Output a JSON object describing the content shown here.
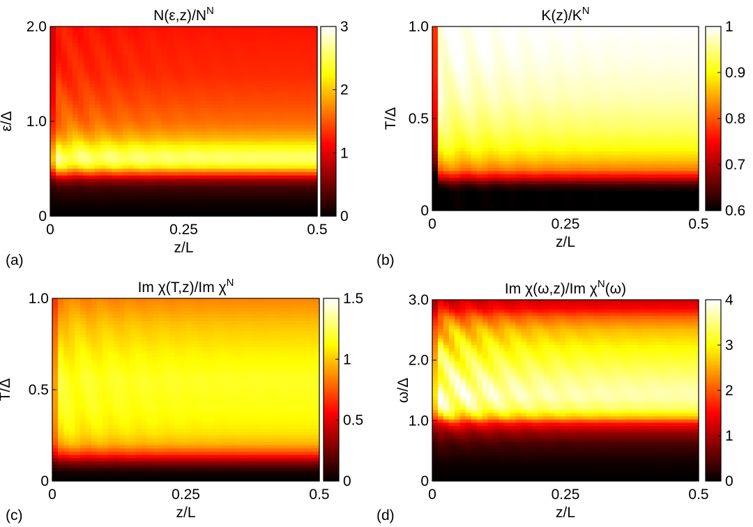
{
  "colormap": "hot",
  "chart_data": [
    {
      "type": "heatmap",
      "panel_label": "(a)",
      "title": "N(ε,z)/N",
      "title_sup": "N",
      "xlabel": "z/L",
      "ylabel": "ε/Δ",
      "xlim": [
        0,
        0.5
      ],
      "ylim": [
        0,
        2.0
      ],
      "clim": [
        0,
        3
      ],
      "x_ticks": [
        "0",
        "0.25",
        "0.5"
      ],
      "x_tick_values": [
        0,
        0.25,
        0.5
      ],
      "y_ticks": [
        "0",
        "1.0",
        "2.0"
      ],
      "y_tick_values": [
        0,
        1.0,
        2.0
      ],
      "colorbar_ticks": [
        "0",
        "1",
        "2",
        "3"
      ],
      "colorbar_tick_values": [
        0,
        1,
        2,
        3
      ],
      "profile_y": [
        0,
        0.1,
        0.2,
        0.3,
        0.38,
        0.45,
        0.52,
        0.58,
        0.64,
        0.72,
        0.8,
        0.9,
        1.0,
        1.2,
        1.5,
        1.8,
        2.0
      ],
      "profile_values": [
        0.0,
        0.05,
        0.15,
        0.3,
        0.7,
        1.5,
        2.2,
        2.55,
        2.55,
        2.3,
        2.0,
        1.75,
        1.6,
        1.45,
        1.3,
        1.25,
        1.2
      ],
      "oscillation_amplitude": 0.08
    },
    {
      "type": "heatmap",
      "panel_label": "(b)",
      "title": "K(z)/K",
      "title_sup": "N",
      "xlabel": "z/L",
      "ylabel": "T/Δ",
      "xlim": [
        0,
        0.5
      ],
      "ylim": [
        0,
        1.0
      ],
      "clim": [
        0.6,
        1.0
      ],
      "x_ticks": [
        "0",
        "0.25",
        "0.5"
      ],
      "x_tick_values": [
        0,
        0.25,
        0.5
      ],
      "y_ticks": [
        "0",
        "0.5",
        "1.0"
      ],
      "y_tick_values": [
        0,
        0.5,
        1.0
      ],
      "colorbar_ticks": [
        "0.6",
        "0.7",
        "0.8",
        "0.9",
        "1"
      ],
      "colorbar_tick_values": [
        0.6,
        0.7,
        0.8,
        0.9,
        1.0
      ],
      "profile_y": [
        0,
        0.1,
        0.14,
        0.18,
        0.22,
        0.28,
        0.35,
        0.45,
        0.6,
        0.8,
        1.0
      ],
      "profile_values": [
        0.6,
        0.6,
        0.64,
        0.74,
        0.82,
        0.87,
        0.91,
        0.94,
        0.97,
        0.99,
        1.0
      ],
      "oscillation_amplitude": 0.02
    },
    {
      "type": "heatmap",
      "panel_label": "(c)",
      "title": "Im χ(T,z)/Im χ",
      "title_sup": "N",
      "xlabel": "z/L",
      "ylabel": "T/Δ",
      "xlim": [
        0,
        0.5
      ],
      "ylim": [
        0,
        1.0
      ],
      "clim": [
        0,
        1.5
      ],
      "x_ticks": [
        "0",
        "0.25",
        "0.5"
      ],
      "x_tick_values": [
        0,
        0.25,
        0.5
      ],
      "y_ticks": [
        "0",
        "0.5",
        "1.0"
      ],
      "y_tick_values": [
        0,
        0.5,
        1.0
      ],
      "colorbar_ticks": [
        "0",
        "0.5",
        "1",
        "1.5"
      ],
      "colorbar_tick_values": [
        0,
        0.5,
        1.0,
        1.5
      ],
      "profile_y": [
        0,
        0.05,
        0.1,
        0.15,
        0.2,
        0.25,
        0.3,
        0.4,
        0.55,
        0.7,
        0.85,
        0.95,
        1.0
      ],
      "profile_values": [
        0.0,
        0.05,
        0.3,
        0.7,
        0.95,
        1.05,
        1.1,
        1.15,
        1.18,
        1.1,
        1.0,
        0.9,
        0.85
      ],
      "oscillation_amplitude": 0.05
    },
    {
      "type": "heatmap",
      "panel_label": "(d)",
      "title": "Im χ(ω,z)/Im χ",
      "title_sup": "N",
      "title_suffix": "(ω)",
      "xlabel": "z/L",
      "ylabel": "ω/Δ",
      "xlim": [
        0,
        0.5
      ],
      "ylim": [
        0,
        3.0
      ],
      "clim": [
        0,
        4
      ],
      "x_ticks": [
        "0",
        "0.25",
        "0.5"
      ],
      "x_tick_values": [
        0,
        0.25,
        0.5
      ],
      "y_ticks": [
        "0",
        "1.0",
        "2.0",
        "3.0"
      ],
      "y_tick_values": [
        0,
        1.0,
        2.0,
        3.0
      ],
      "colorbar_ticks": [
        "0",
        "1",
        "2",
        "3",
        "4"
      ],
      "colorbar_tick_values": [
        0,
        1,
        2,
        3,
        4
      ],
      "profile_y": [
        0,
        0.3,
        0.6,
        0.8,
        0.95,
        1.05,
        1.2,
        1.4,
        1.6,
        1.9,
        2.2,
        2.5,
        2.7,
        2.85,
        3.0
      ],
      "profile_values": [
        0.0,
        0.1,
        0.4,
        0.9,
        1.6,
        2.6,
        3.4,
        3.7,
        3.6,
        3.3,
        3.0,
        2.6,
        2.1,
        1.5,
        1.2
      ],
      "oscillation_amplitude": 0.15
    }
  ]
}
